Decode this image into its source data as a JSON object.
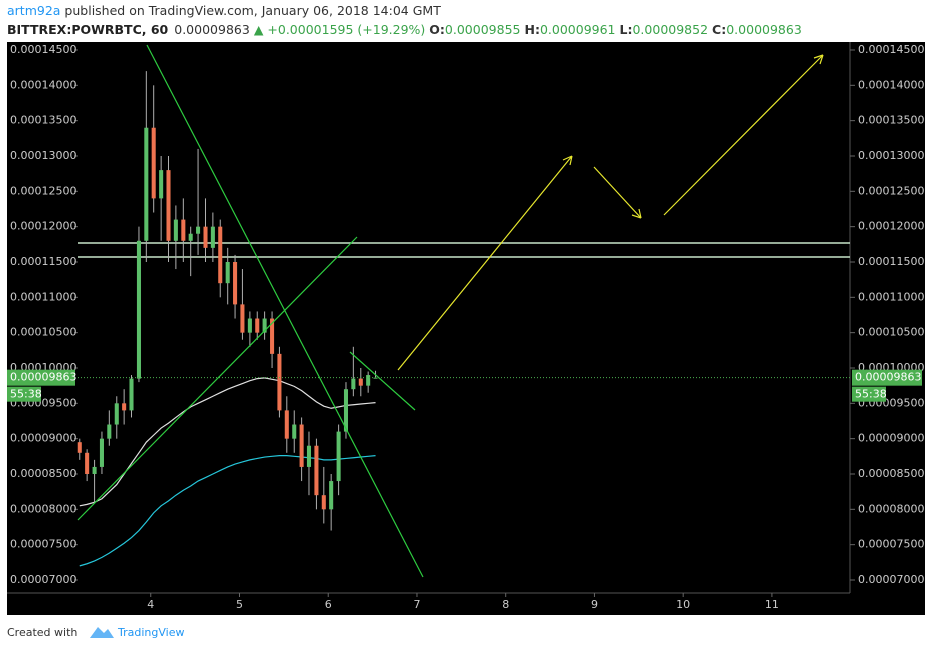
{
  "header": {
    "author": "artm92a",
    "published": " published on TradingView.com, January 06, 2018 14:04 GMT",
    "symbol": "BITTREX:POWRBTC, 60",
    "price": "0.00009863",
    "change": "▲ +0.00001595 (+19.29%)",
    "ohlc": [
      {
        "label": "O:",
        "value": "0.00009855"
      },
      {
        "label": "H:",
        "value": "0.00009961"
      },
      {
        "label": "L:",
        "value": "0.00009852"
      },
      {
        "label": "C:",
        "value": "0.00009863"
      }
    ]
  },
  "chart_data": {
    "type": "candlestick",
    "x": [
      3.2,
      3.283,
      3.367,
      3.45,
      3.533,
      3.617,
      3.7,
      3.783,
      3.867,
      3.95,
      4.033,
      4.117,
      4.2,
      4.283,
      4.367,
      4.45,
      4.533,
      4.617,
      4.7,
      4.783,
      4.867,
      4.95,
      5.033,
      5.117,
      5.2,
      5.283,
      5.367,
      5.45,
      5.533,
      5.617,
      5.7,
      5.783,
      5.867,
      5.95,
      6.033,
      6.117,
      6.2,
      6.283,
      6.367,
      6.45,
      6.533
    ],
    "open": [
      8.95e-05,
      8.8e-05,
      8.5e-05,
      8.6e-05,
      9e-05,
      9.2e-05,
      9.5e-05,
      9.4e-05,
      9.85e-05,
      0.000118,
      0.000134,
      0.000124,
      0.000128,
      0.000118,
      0.000121,
      0.000118,
      0.000119,
      0.00012,
      0.000117,
      0.00012,
      0.000112,
      0.000115,
      0.000109,
      0.000105,
      0.000107,
      0.000105,
      0.000107,
      0.000102,
      9.4e-05,
      9e-05,
      9.2e-05,
      8.6e-05,
      8.9e-05,
      8.2e-05,
      8e-05,
      8.4e-05,
      9.1e-05,
      9.7e-05,
      9.85e-05,
      9.75e-05,
      9.855e-05
    ],
    "high": [
      9e-05,
      8.85e-05,
      8.7e-05,
      9.1e-05,
      9.4e-05,
      9.6e-05,
      9.7e-05,
      9.9e-05,
      0.00012,
      0.000142,
      0.00014,
      0.00013,
      0.00013,
      0.000123,
      0.000124,
      0.00012,
      0.000131,
      0.000124,
      0.000122,
      0.000121,
      0.000117,
      0.000116,
      0.000114,
      0.000108,
      0.000108,
      0.000108,
      0.000108,
      0.000103,
      9.6e-05,
      9.4e-05,
      9.3e-05,
      9.1e-05,
      9e-05,
      8.6e-05,
      8.5e-05,
      9.2e-05,
      9.8e-05,
      0.000103,
      0.0001,
      9.95e-05,
      9.961e-05
    ],
    "low": [
      8.7e-05,
      8.4e-05,
      8.1e-05,
      8.5e-05,
      8.9e-05,
      9e-05,
      9.2e-05,
      9.3e-05,
      9.8e-05,
      0.000115,
      0.000122,
      0.000118,
      0.000115,
      0.000114,
      0.000115,
      0.000113,
      0.000116,
      0.000115,
      0.000115,
      0.00011,
      0.000109,
      0.000107,
      0.000104,
      0.000103,
      0.000104,
      0.000104,
      0.0001,
      9.3e-05,
      8.8e-05,
      8.8e-05,
      8.4e-05,
      8.2e-05,
      8e-05,
      7.8e-05,
      7.7e-05,
      8.2e-05,
      9e-05,
      9.6e-05,
      9.6e-05,
      9.65e-05,
      9.852e-05
    ],
    "close": [
      8.8e-05,
      8.5e-05,
      8.6e-05,
      9e-05,
      9.2e-05,
      9.5e-05,
      9.4e-05,
      9.85e-05,
      0.000118,
      0.000134,
      0.000124,
      0.000128,
      0.000118,
      0.000121,
      0.000118,
      0.000119,
      0.00012,
      0.000117,
      0.00012,
      0.000112,
      0.000115,
      0.000109,
      0.000105,
      0.000107,
      0.000105,
      0.000107,
      0.000102,
      9.4e-05,
      9e-05,
      9.2e-05,
      8.6e-05,
      8.9e-05,
      8.2e-05,
      8e-05,
      8.4e-05,
      9.1e-05,
      9.7e-05,
      9.85e-05,
      9.75e-05,
      9.9e-05,
      9.863e-05
    ],
    "up_color": "#5cbf6a",
    "down_color": "#ee7350",
    "wick_color": "#b0b0b0",
    "overlays": [
      {
        "color": "#e0e0e0",
        "values": [
          8.05e-05,
          8.07e-05,
          8.1e-05,
          8.15e-05,
          8.25e-05,
          8.35e-05,
          8.5e-05,
          8.65e-05,
          8.8e-05,
          8.95e-05,
          9.05e-05,
          9.15e-05,
          9.22e-05,
          9.3e-05,
          9.38e-05,
          9.45e-05,
          9.5e-05,
          9.55e-05,
          9.6e-05,
          9.65e-05,
          9.7e-05,
          9.74e-05,
          9.78e-05,
          9.82e-05,
          9.85e-05,
          9.86e-05,
          9.84e-05,
          9.82e-05,
          9.78e-05,
          9.74e-05,
          9.68e-05,
          9.6e-05,
          9.52e-05,
          9.46e-05,
          9.43e-05,
          9.45e-05,
          9.47e-05,
          9.48e-05,
          9.49e-05,
          9.5e-05,
          9.51e-05
        ]
      },
      {
        "color": "#26c6da",
        "values": [
          7.2e-05,
          7.23e-05,
          7.27e-05,
          7.32e-05,
          7.38e-05,
          7.45e-05,
          7.52e-05,
          7.6e-05,
          7.7e-05,
          7.82e-05,
          7.95e-05,
          8.05e-05,
          8.12e-05,
          8.2e-05,
          8.27e-05,
          8.33e-05,
          8.4e-05,
          8.45e-05,
          8.5e-05,
          8.55e-05,
          8.6e-05,
          8.64e-05,
          8.67e-05,
          8.7e-05,
          8.72e-05,
          8.74e-05,
          8.75e-05,
          8.76e-05,
          8.76e-05,
          8.75e-05,
          8.74e-05,
          8.73e-05,
          8.72e-05,
          8.7e-05,
          8.7e-05,
          8.71e-05,
          8.72e-05,
          8.73e-05,
          8.74e-05,
          8.75e-05,
          8.76e-05
        ]
      }
    ],
    "last_price": {
      "value": 9.863e-05,
      "label": "0.00009863"
    },
    "countdown": "55:38",
    "price_tag_color": "#4caf50",
    "xlim": [
      3.18,
      11.88
    ],
    "xticks": [
      4,
      5,
      6,
      7,
      8,
      9,
      10,
      11
    ],
    "ylim": [
      6.816e-05,
      0.00014613
    ],
    "yticks": [
      {
        "value": 7e-05,
        "label": "0.00007000"
      },
      {
        "value": 7.5e-05,
        "label": "0.00007500"
      },
      {
        "value": 8e-05,
        "label": "0.00008000"
      },
      {
        "value": 8.5e-05,
        "label": "0.00008500"
      },
      {
        "value": 9e-05,
        "label": "0.00009000"
      },
      {
        "value": 9.5e-05,
        "label": "0.00009500"
      },
      {
        "value": 0.0001,
        "label": "0.00010000"
      },
      {
        "value": 0.000105,
        "label": "0.00010500"
      },
      {
        "value": 0.00011,
        "label": "0.00011000"
      },
      {
        "value": 0.000115,
        "label": "0.00011500"
      },
      {
        "value": 0.00012,
        "label": "0.00012000"
      },
      {
        "value": 0.000125,
        "label": "0.00012500"
      },
      {
        "value": 0.00013,
        "label": "0.00013000"
      },
      {
        "value": 0.000135,
        "label": "0.00013500"
      },
      {
        "value": 0.00014,
        "label": "0.00014000"
      },
      {
        "value": 0.000145,
        "label": "0.00014500"
      }
    ]
  },
  "footer": {
    "created": "Created with",
    "brand": "TradingView"
  }
}
